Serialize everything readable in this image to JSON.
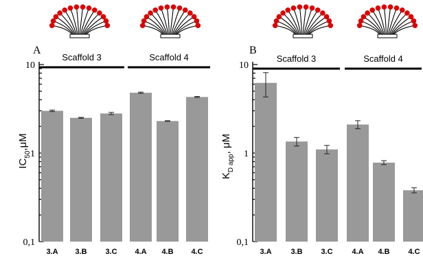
{
  "panels": [
    {
      "letter": "A",
      "groups": [
        "Scaffold 3",
        "Scaffold 4"
      ],
      "ylabel_main": "IC",
      "ylabel_sub": "50",
      "ylabel_tail": ",μM",
      "ytick_labels": [
        "10",
        "1",
        "0,1"
      ]
    },
    {
      "letter": "B",
      "groups": [
        "Scaffold 3",
        "Scaffold 4"
      ],
      "ylabel_main": "K",
      "ylabel_sub": "D app",
      "ylabel_tail": ", μM",
      "ytick_labels": [
        "10",
        "1",
        "0,1"
      ]
    }
  ],
  "chart_data": [
    {
      "type": "bar",
      "panel": "A",
      "categories": [
        "3.A",
        "3.B",
        "3.C",
        "4.A",
        "4.B",
        "4.C"
      ],
      "values": [
        3.0,
        2.5,
        2.8,
        4.8,
        2.3,
        4.3
      ],
      "errors": [
        0.06,
        0.03,
        0.08,
        0.08,
        0.02,
        0.06
      ],
      "ylabel": "IC50,μM",
      "yscale": "log",
      "ylim": [
        0.1,
        10
      ],
      "yticks": [
        "10",
        "1",
        "0,1"
      ],
      "groups": [
        {
          "name": "Scaffold 3",
          "categories": [
            "3.A",
            "3.B",
            "3.C"
          ]
        },
        {
          "name": "Scaffold 4",
          "categories": [
            "4.A",
            "4.B",
            "4.C"
          ]
        }
      ],
      "grid": false,
      "bar_color": "#999999"
    },
    {
      "type": "bar",
      "panel": "B",
      "categories": [
        "3.A",
        "3.B",
        "3.C",
        "4.A",
        "4.B",
        "4.C"
      ],
      "values": [
        6.2,
        1.35,
        1.1,
        2.1,
        0.78,
        0.38
      ],
      "errors": [
        1.9,
        0.15,
        0.12,
        0.22,
        0.04,
        0.025
      ],
      "ylabel": "KD app, μM",
      "yscale": "log",
      "ylim": [
        0.1,
        10
      ],
      "yticks": [
        "10",
        "1",
        "0,1"
      ],
      "groups": [
        {
          "name": "Scaffold 3",
          "categories": [
            "3.A",
            "3.B",
            "3.C"
          ]
        },
        {
          "name": "Scaffold 4",
          "categories": [
            "4.A",
            "4.B",
            "4.C"
          ]
        }
      ],
      "grid": false,
      "bar_color": "#999999"
    }
  ]
}
